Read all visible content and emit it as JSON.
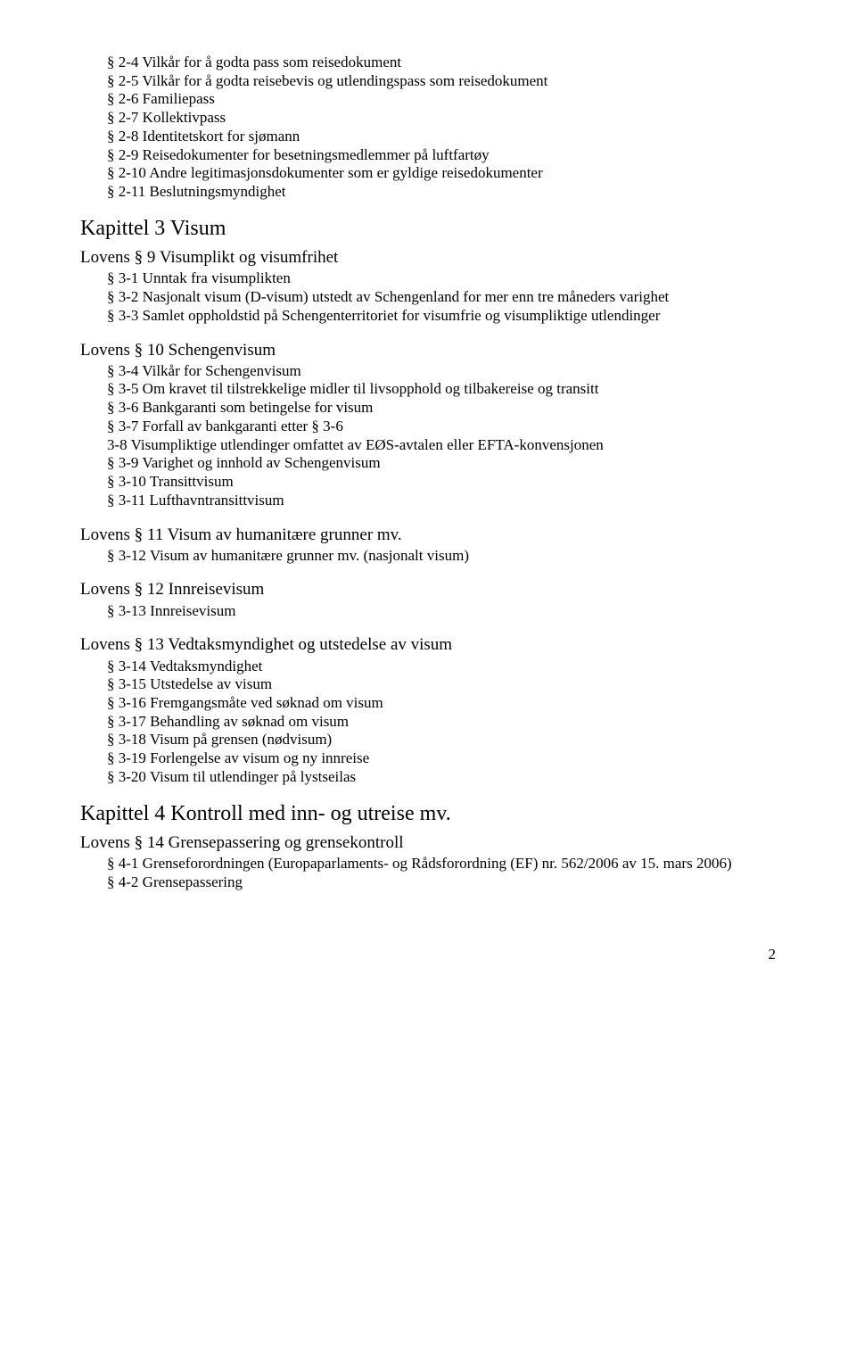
{
  "sections": [
    {
      "type": "items",
      "items": [
        "§ 2-4 Vilkår for å godta pass som reisedokument",
        "§ 2-5 Vilkår for å godta reisebevis og utlendingspass som reisedokument",
        "§ 2-6 Familiepass",
        "§ 2-7 Kollektivpass",
        "§ 2-8 Identitetskort for sjømann",
        "§ 2-9 Reisedokumenter for besetningsmedlemmer på luftfartøy",
        "§ 2-10 Andre legitimasjonsdokumenter som er gyldige reisedokumenter",
        "§ 2-11 Beslutningsmyndighet"
      ]
    },
    {
      "type": "heading-large",
      "text": "Kapittel 3 Visum"
    },
    {
      "type": "heading-medium",
      "text": "Lovens § 9 Visumplikt og visumfrihet"
    },
    {
      "type": "items",
      "items": [
        "§ 3-1 Unntak fra visumplikten",
        "§ 3-2 Nasjonalt visum (D-visum) utstedt av Schengenland for mer enn tre måneders varighet",
        "§ 3-3 Samlet oppholdstid på Schengenterritoriet for visumfrie og visumpliktige utlendinger"
      ]
    },
    {
      "type": "heading-medium",
      "text": "Lovens § 10 Schengenvisum"
    },
    {
      "type": "items",
      "items": [
        "§ 3-4 Vilkår for Schengenvisum",
        "§ 3-5 Om kravet til tilstrekkelige midler til livsopphold og tilbakereise og transitt",
        "§ 3-6 Bankgaranti som betingelse for visum",
        "§ 3-7 Forfall av bankgaranti etter § 3-6",
        "3-8 Visumpliktige utlendinger omfattet av EØS-avtalen eller EFTA-konvensjonen",
        "§ 3-9 Varighet og innhold av Schengenvisum",
        "§ 3-10 Transittvisum",
        "§ 3-11 Lufthavntransittvisum"
      ]
    },
    {
      "type": "heading-medium",
      "text": "Lovens § 11 Visum av humanitære grunner mv."
    },
    {
      "type": "items",
      "items": [
        "§ 3-12 Visum av humanitære grunner mv. (nasjonalt visum)"
      ]
    },
    {
      "type": "heading-medium",
      "text": "Lovens § 12 Innreisevisum"
    },
    {
      "type": "items",
      "items": [
        "§ 3-13 Innreisevisum"
      ]
    },
    {
      "type": "heading-medium",
      "text": "Lovens § 13 Vedtaksmyndighet og utstedelse av visum"
    },
    {
      "type": "items",
      "items": [
        "§ 3-14 Vedtaksmyndighet",
        "§ 3-15 Utstedelse av visum",
        "§ 3-16 Fremgangsmåte ved søknad om visum",
        "§ 3-17 Behandling av søknad om visum",
        "§ 3-18 Visum på grensen (nødvisum)",
        "§ 3-19 Forlengelse av visum og ny innreise",
        "§ 3-20 Visum til utlendinger på lystseilas"
      ]
    },
    {
      "type": "heading-large",
      "text": "Kapittel 4 Kontroll med inn- og utreise mv."
    },
    {
      "type": "heading-medium",
      "text": "Lovens § 14 Grensepassering og grensekontroll"
    },
    {
      "type": "items",
      "items": [
        "§ 4-1 Grenseforordningen (Europaparlaments- og Rådsforordning (EF) nr. 562/2006 av 15. mars 2006)",
        "§ 4-2 Grensepassering"
      ]
    }
  ],
  "page_number": "2"
}
